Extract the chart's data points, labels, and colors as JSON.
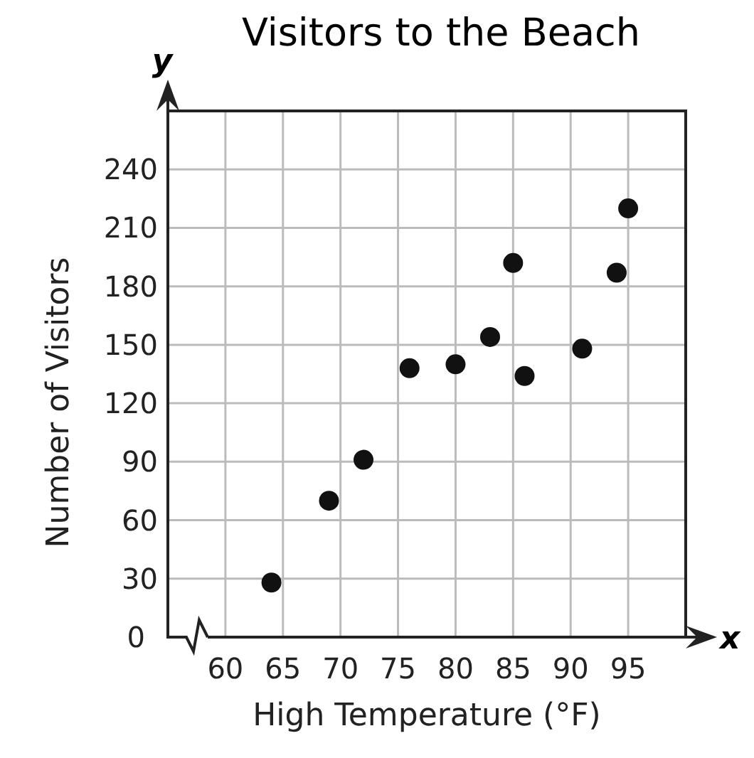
{
  "chart_data": {
    "type": "scatter",
    "title": "Visitors to the Beach",
    "xlabel": "High Temperature (°F)",
    "ylabel": "Number of Visitors",
    "annotations": [
      "x",
      "y"
    ],
    "x": [
      64,
      69,
      72,
      76,
      80,
      83,
      85,
      86,
      91,
      94,
      95
    ],
    "values": [
      28,
      70,
      91,
      138,
      140,
      154,
      192,
      134,
      148,
      187,
      220
    ],
    "color": "#111111",
    "marker": "circle",
    "xlim": [
      55,
      100
    ],
    "xticks": [
      60,
      65,
      70,
      75,
      80,
      85,
      90,
      95
    ],
    "ylim": [
      0,
      270
    ],
    "yticks": [
      0,
      30,
      60,
      90,
      120,
      150,
      180,
      210,
      240
    ],
    "grid": true
  }
}
